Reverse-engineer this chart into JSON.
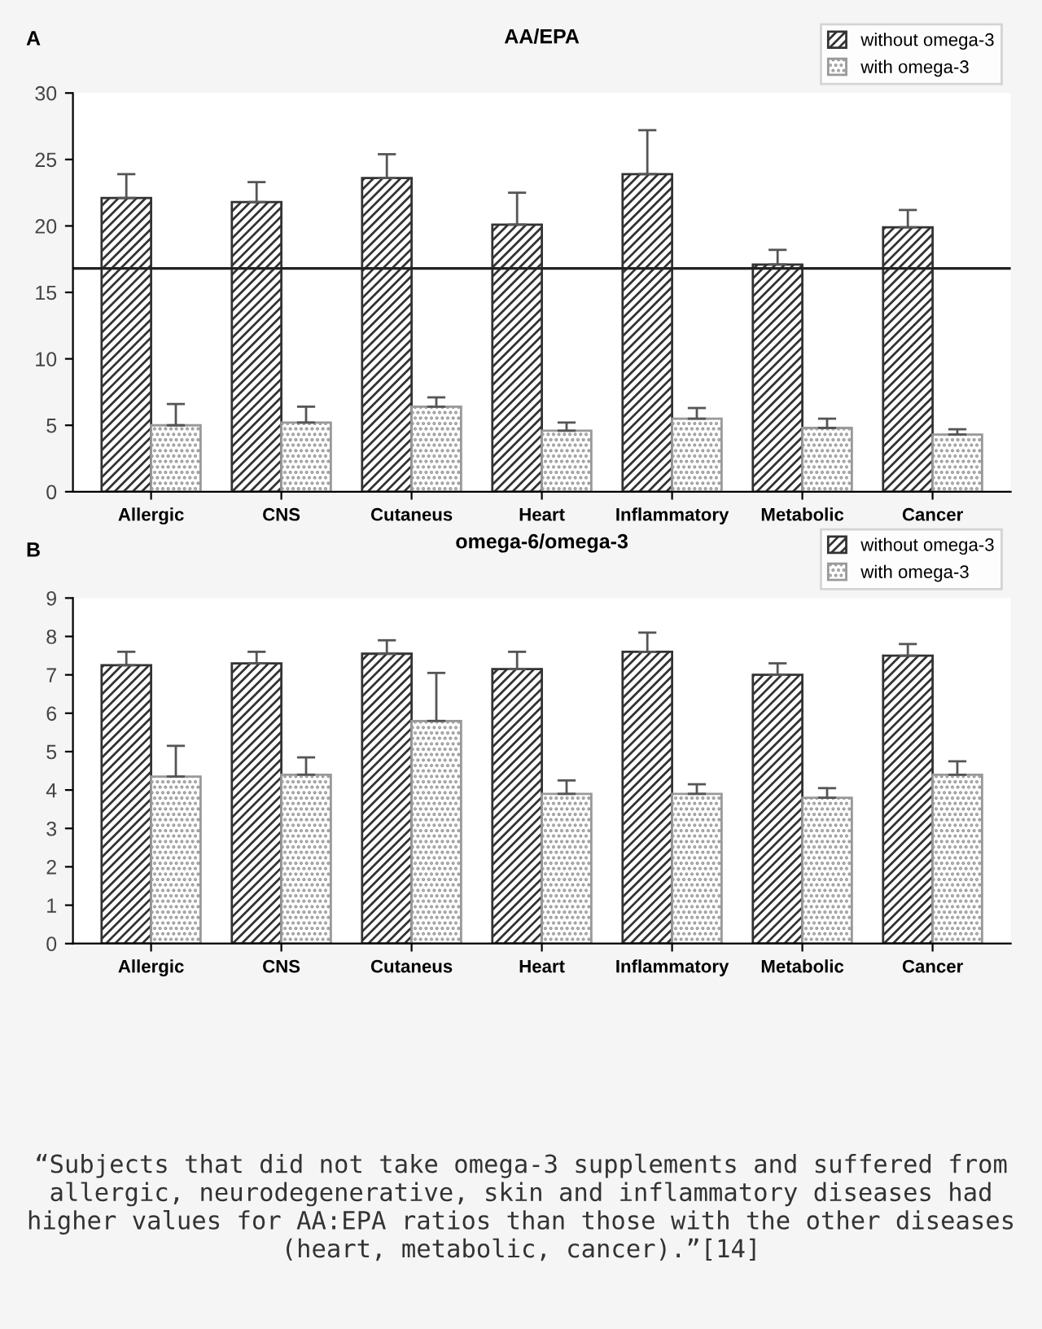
{
  "chart_data": [
    {
      "type": "bar",
      "title": "AA/EPA",
      "annotations": [
        "A"
      ],
      "categories": [
        "Allergic",
        "CNS",
        "Cutaneus",
        "Heart",
        "Inflammatory",
        "Metabolic",
        "Cancer"
      ],
      "series": [
        {
          "name": "without omega-3",
          "color": "#333333",
          "values": [
            22.1,
            21.8,
            23.6,
            20.1,
            23.9,
            17.1,
            19.9
          ],
          "errors": [
            [
              22.1,
              23.9
            ],
            [
              21.8,
              23.3
            ],
            [
              23.6,
              25.4
            ],
            [
              20.1,
              22.5
            ],
            [
              23.9,
              27.2
            ],
            [
              17.1,
              18.2
            ],
            [
              19.9,
              21.2
            ]
          ]
        },
        {
          "name": "with omega-3",
          "color": "#999999",
          "values": [
            5.0,
            5.2,
            6.4,
            4.6,
            5.5,
            4.8,
            4.3
          ],
          "errors": [
            [
              5.0,
              6.6
            ],
            [
              5.2,
              6.4
            ],
            [
              6.4,
              7.1
            ],
            [
              4.6,
              5.2
            ],
            [
              5.5,
              6.3
            ],
            [
              4.8,
              5.5
            ],
            [
              4.3,
              4.7
            ]
          ]
        }
      ],
      "ylim": [
        0,
        30
      ],
      "yticks": [
        0,
        5,
        10,
        15,
        20,
        25,
        30
      ],
      "ref_lines": [
        {
          "axis": "y",
          "value": 16.8,
          "color": "#222222"
        }
      ],
      "legend": "top right",
      "grid": false
    },
    {
      "type": "bar",
      "title": "omega-6/omega-3",
      "annotations": [
        "B",
        "“Subjects that did not take omega-3 supplements and suffered from allergic, neurodegenerative, skin and inflammatory diseases had higher values for AA:EPA ratios than those with the other diseases (heart, metabolic, cancer).”[14]"
      ],
      "categories": [
        "Allergic",
        "CNS",
        "Cutaneus",
        "Heart",
        "Inflammatory",
        "Metabolic",
        "Cancer"
      ],
      "series": [
        {
          "name": "without omega-3",
          "color": "#333333",
          "values": [
            7.25,
            7.3,
            7.55,
            7.15,
            7.6,
            7.0,
            7.5
          ],
          "errors": [
            [
              7.25,
              7.6
            ],
            [
              7.3,
              7.6
            ],
            [
              7.55,
              7.9
            ],
            [
              7.15,
              7.6
            ],
            [
              7.6,
              8.1
            ],
            [
              7.0,
              7.3
            ],
            [
              7.5,
              7.8
            ]
          ]
        },
        {
          "name": "with omega-3",
          "color": "#999999",
          "values": [
            4.35,
            4.4,
            5.8,
            3.9,
            3.9,
            3.8,
            4.4
          ],
          "errors": [
            [
              4.35,
              5.15
            ],
            [
              4.4,
              4.85
            ],
            [
              5.8,
              7.05
            ],
            [
              3.9,
              4.25
            ],
            [
              3.9,
              4.15
            ],
            [
              3.8,
              4.05
            ],
            [
              4.4,
              4.75
            ]
          ]
        }
      ],
      "ylim": [
        0,
        9
      ],
      "yticks": [
        0,
        1,
        2,
        3,
        4,
        5,
        6,
        7,
        8,
        9
      ],
      "legend": "top right",
      "grid": false
    }
  ]
}
